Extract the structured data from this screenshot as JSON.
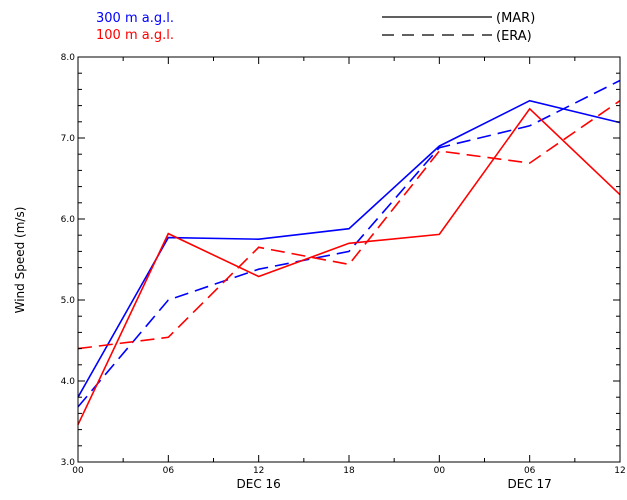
{
  "chart_data": {
    "type": "line",
    "xlabel": "",
    "ylabel": "Wind Speed (m/s)",
    "ylim": [
      3.0,
      8.0
    ],
    "grid": false,
    "x_ticks": [
      "00",
      "06",
      "12",
      "18",
      "00",
      "06",
      "12"
    ],
    "x_date_labels": [
      {
        "label": "DEC 16",
        "at_tick": 2
      },
      {
        "label": "DEC 17",
        "at_tick": 5
      }
    ],
    "y_ticks": [
      "3.0",
      "4.0",
      "5.0",
      "6.0",
      "7.0",
      "8.0"
    ],
    "y_values": [
      3.0,
      4.0,
      5.0,
      6.0,
      7.0,
      8.0
    ],
    "legend": {
      "levels": [
        {
          "label": "300 m a.g.l.",
          "color": "#0000ff"
        },
        {
          "label": "100 m a.g.l.",
          "color": "#ff0000"
        }
      ],
      "styles": [
        {
          "label": "(MAR)",
          "dash": "solid"
        },
        {
          "label": "(ERA)",
          "dash": "dashed"
        }
      ]
    },
    "series": [
      {
        "level": "300 m a.g.l.",
        "source": "(MAR)",
        "color": "#0000ff",
        "dash": "solid",
        "values": [
          3.8,
          5.77,
          5.75,
          5.88,
          6.9,
          7.46,
          7.19
        ]
      },
      {
        "level": "300 m a.g.l.",
        "source": "(ERA)",
        "color": "#0000ff",
        "dash": "dashed",
        "values": [
          3.68,
          5.0,
          5.38,
          5.6,
          6.88,
          7.15,
          7.71
        ]
      },
      {
        "level": "100 m a.g.l.",
        "source": "(MAR)",
        "color": "#ff0000",
        "dash": "solid",
        "values": [
          3.46,
          5.82,
          5.29,
          5.7,
          5.81,
          7.36,
          6.3
        ]
      },
      {
        "level": "100 m a.g.l.",
        "source": "(ERA)",
        "color": "#ff0000",
        "dash": "dashed",
        "values": [
          4.4,
          4.54,
          5.65,
          5.44,
          6.84,
          6.69,
          7.46
        ]
      }
    ]
  }
}
